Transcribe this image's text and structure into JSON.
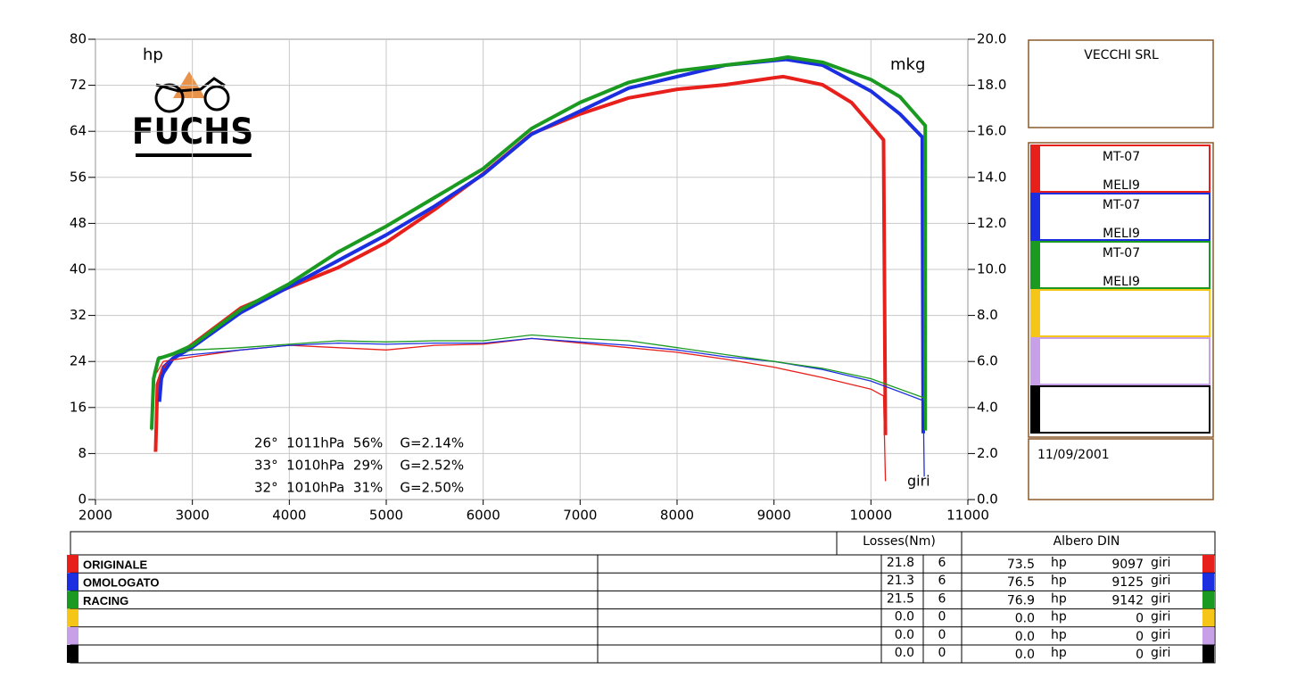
{
  "chart_data": {
    "type": "line",
    "y_label": "hp",
    "y2_label": "mkg",
    "x_label": "giri",
    "xlim": [
      2000,
      11000
    ],
    "xticks": [
      2000,
      3000,
      4000,
      5000,
      6000,
      7000,
      8000,
      9000,
      10000,
      11000
    ],
    "ylim": [
      0,
      80
    ],
    "yticks": [
      0,
      8,
      16,
      24,
      32,
      40,
      48,
      56,
      64,
      72,
      80
    ],
    "y2lim": [
      0,
      20
    ],
    "y2ticks": [
      {
        "value": 0,
        "label": "0.0"
      },
      {
        "value": 2,
        "label": "2.0"
      },
      {
        "value": 4,
        "label": "4.0"
      },
      {
        "value": 6,
        "label": "6.0"
      },
      {
        "value": 8,
        "label": "8.0"
      },
      {
        "value": 10,
        "label": "10.0"
      },
      {
        "value": 12,
        "label": "12.0"
      },
      {
        "value": 14,
        "label": "14.0"
      },
      {
        "value": 16,
        "label": "16.0"
      },
      {
        "value": 18,
        "label": "18.0"
      },
      {
        "value": 20,
        "label": "20.0"
      }
    ],
    "grid": true,
    "series": [
      {
        "color": "#e8201c",
        "x": [
          2620,
          2640,
          2700,
          2800,
          3000,
          3500,
          4000,
          4500,
          5000,
          5500,
          6000,
          6500,
          7000,
          7500,
          8000,
          8500,
          9000,
          9097,
          9500,
          9800,
          10000,
          10130,
          10150
        ],
        "values": [
          8.3,
          20,
          23,
          24.5,
          27,
          33.3,
          36.9,
          40.3,
          44.7,
          50.4,
          56.6,
          63.6,
          67,
          69.8,
          71.3,
          72.1,
          73.3,
          73.5,
          72.1,
          69,
          65.1,
          62.5,
          11.2
        ]
      },
      {
        "color": "#1c2fe0",
        "x": [
          2660,
          2680,
          2700,
          2800,
          3000,
          3500,
          4000,
          4500,
          5000,
          5500,
          6000,
          6500,
          7000,
          7500,
          8000,
          8500,
          9000,
          9125,
          9500,
          10000,
          10300,
          10530,
          10540
        ],
        "values": [
          17,
          21,
          22,
          24.5,
          26.5,
          32.5,
          37,
          41.5,
          46,
          51,
          56.5,
          63.5,
          67.5,
          71.5,
          73.5,
          75.5,
          76.3,
          76.5,
          75.5,
          71,
          67,
          63,
          11.5
        ]
      },
      {
        "color": "#1a9a20",
        "x": [
          2580,
          2600,
          2650,
          2800,
          3000,
          3500,
          4000,
          4500,
          5000,
          5500,
          6000,
          6500,
          7000,
          7500,
          8000,
          8500,
          9000,
          9142,
          9500,
          10000,
          10300,
          10560,
          10560
        ],
        "values": [
          12.2,
          21,
          24.5,
          25.3,
          26.8,
          33,
          37.5,
          43,
          47.5,
          52.5,
          57.5,
          64.5,
          69,
          72.5,
          74.5,
          75.5,
          76.5,
          76.9,
          76,
          73,
          70,
          65,
          12
        ]
      },
      {
        "color": "#e8201c",
        "axis": "y2",
        "x": [
          2630,
          2700,
          3000,
          3500,
          4000,
          4500,
          5000,
          5500,
          6000,
          6500,
          7000,
          7500,
          8000,
          8500,
          9000,
          9500,
          10000,
          10130,
          10150
        ],
        "values": [
          5.5,
          6.0,
          6.2,
          6.5,
          6.7,
          6.6,
          6.5,
          6.7,
          6.75,
          7.0,
          6.8,
          6.6,
          6.4,
          6.1,
          5.75,
          5.3,
          4.8,
          4.5,
          0.8
        ]
      },
      {
        "color": "#1c2fe0",
        "axis": "y2",
        "x": [
          2660,
          2700,
          2800,
          3000,
          3500,
          4000,
          4500,
          5000,
          5500,
          6000,
          6500,
          7000,
          7500,
          8000,
          8500,
          9000,
          9500,
          10000,
          10540,
          10550
        ],
        "values": [
          4.5,
          5.8,
          6.2,
          6.3,
          6.5,
          6.7,
          6.8,
          6.75,
          6.8,
          6.8,
          7.0,
          6.85,
          6.7,
          6.5,
          6.2,
          6.0,
          5.65,
          5.15,
          4.3,
          1.0
        ]
      },
      {
        "color": "#1a9a20",
        "axis": "y2",
        "x": [
          2580,
          2600,
          2650,
          2800,
          3000,
          3500,
          4000,
          4500,
          5000,
          5500,
          6000,
          6500,
          7000,
          7500,
          8000,
          8500,
          9000,
          9500,
          10000,
          10560
        ],
        "values": [
          3.0,
          5.5,
          6.2,
          6.3,
          6.5,
          6.6,
          6.75,
          6.9,
          6.85,
          6.9,
          6.9,
          7.15,
          7.0,
          6.9,
          6.6,
          6.3,
          6.0,
          5.7,
          5.25,
          4.4
        ]
      }
    ],
    "annotations": [
      {
        "text": "26°  1011hPa  56%    G=2.14%",
        "color": "#e8201c"
      },
      {
        "text": "33°  1010hPa  29%    G=2.52%",
        "color": "#1c2fe0"
      },
      {
        "text": "32°  1010hPa  31%    G=2.50%",
        "color": "#1a9a20"
      }
    ]
  },
  "logo": "FUCHS",
  "panel": {
    "company": "VECCHI SRL",
    "runs": [
      {
        "color": "#e8201c",
        "model": "MT-07",
        "code": "MELI9"
      },
      {
        "color": "#1c2fe0",
        "model": "MT-07",
        "code": "MELI9"
      },
      {
        "color": "#1a9a20",
        "model": "MT-07",
        "code": "MELI9"
      },
      {
        "color": "#f5c518"
      },
      {
        "color": "#c7a0e8"
      },
      {
        "color": "#000000"
      }
    ],
    "date": "11/09/2001"
  },
  "table": {
    "headers": {
      "losses": "Losses(Nm)",
      "power": "Albero DIN"
    },
    "rows": [
      {
        "color": "#e8201c",
        "name": "ORIGINALE",
        "loss": "21.8",
        "gear": "6",
        "power": "73.5",
        "unit": "hp",
        "rpm": "9097",
        "rpm_unit": "giri"
      },
      {
        "color": "#1c2fe0",
        "name": "OMOLOGATO",
        "loss": "21.3",
        "gear": "6",
        "power": "76.5",
        "unit": "hp",
        "rpm": "9125",
        "rpm_unit": "giri"
      },
      {
        "color": "#1a9a20",
        "name": "RACING",
        "loss": "21.5",
        "gear": "6",
        "power": "76.9",
        "unit": "hp",
        "rpm": "9142",
        "rpm_unit": "giri"
      },
      {
        "color": "#f5c518",
        "loss": "0.0",
        "gear": "0",
        "power": "0.0",
        "unit": "hp",
        "rpm": "0",
        "rpm_unit": "giri"
      },
      {
        "color": "#c7a0e8",
        "loss": "0.0",
        "gear": "0",
        "power": "0.0",
        "unit": "hp",
        "rpm": "0",
        "rpm_unit": "giri"
      },
      {
        "color": "#000000",
        "loss": "0.0",
        "gear": "0",
        "power": "0.0",
        "unit": "hp",
        "rpm": "0",
        "rpm_unit": "giri"
      }
    ]
  }
}
